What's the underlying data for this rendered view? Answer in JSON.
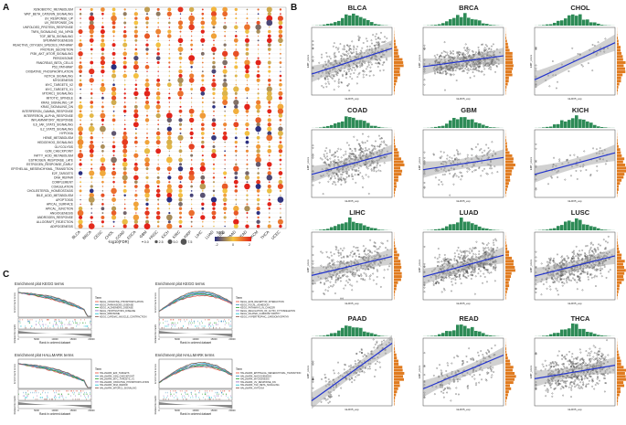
{
  "panels": {
    "a": {
      "letter": "A",
      "rows": [
        "XENOBIOTIC_METABOLISM",
        "WNT_BETA_CATENIN_SIGNALING",
        "UV_RESPONSE_UP",
        "UV_RESPONSE_DN",
        "UNFOLDED_PROTEIN_RESPONSE",
        "TNFA_SIGNALING_VIA_NFKB",
        "TGF_BETA_SIGNALING",
        "SPERMATOGENESIS",
        "REACTIVE_OXYGEN_SPECIES_PATHWAY",
        "PROTEIN_SECRETION",
        "PI3K_AKT_MTOR_SIGNALING",
        "PEROXISOME",
        "PANCREAS_BETA_CELLS",
        "P53_PATHWAY",
        "OXIDATIVE_PHOSPHORYLATION",
        "NOTCH_SIGNALING",
        "MYOGENESIS",
        "MYC_TARGETS_V2",
        "MYC_TARGETS_V1",
        "MTORC1_SIGNALING",
        "MITOTIC_SPINDLE",
        "KRAS_SIGNALING_UP",
        "KRAS_SIGNALING_DN",
        "INTERFERON_GAMMA_RESPONSE",
        "INTERFERON_ALPHA_RESPONSE",
        "INFLAMMATORY_RESPONSE",
        "IL6_JAK_STAT3_SIGNALING",
        "IL2_STAT5_SIGNALING",
        "HYPOXIA",
        "HEME_METABOLISM",
        "HEDGEHOG_SIGNALING",
        "GLYCOLYSIS",
        "G2M_CHECKPOINT",
        "FATTY_ACID_METABOLISM",
        "ESTROGEN_RESPONSE_LATE",
        "ESTROGEN_RESPONSE_EARLY",
        "EPITHELIAL_MESENCHYMAL_TRANSITION",
        "E2F_TARGETS",
        "DNA_REPAIR",
        "COMPLEMENT",
        "COAGULATION",
        "CHOLESTEROL_HOMEOSTASIS",
        "BILE_ACID_METABOLISM",
        "APOPTOSIS",
        "APICAL_SURFACE",
        "APICAL_JUNCTION",
        "ANGIOGENESIS",
        "ANDROGEN_RESPONSE",
        "ALLOGRAFT_REJECTION",
        "ADIPOGENESIS"
      ],
      "columns": [
        "BLCA",
        "BRCA",
        "CESC",
        "CHOL",
        "COAD",
        "ESCA",
        "GBM",
        "HNSC",
        "KICH",
        "KIRC",
        "KIRP",
        "LIHC",
        "LUAD",
        "LUSC",
        "PAAD",
        "READ",
        "SKCM",
        "THCA",
        "UCEC"
      ],
      "size_legend_title": "-log10(FDR)",
      "size_legend_values": [
        "0.0",
        "2.5",
        "5.0",
        "7.5"
      ],
      "color_legend_title": "NES",
      "color_legend_ticks": [
        "-2",
        "0",
        "2"
      ],
      "colors": {
        "low": "#2b2f80",
        "mid": "#f4c542",
        "high": "#e2231a"
      }
    },
    "b": {
      "letter": "B",
      "plots": [
        {
          "title": "BLCA",
          "slope": 0.38,
          "points": 380,
          "spread": 0.9
        },
        {
          "title": "BRCA",
          "slope": 0.16,
          "points": 900,
          "spread": 0.55
        },
        {
          "title": "CHOL",
          "slope": 0.55,
          "points": 40,
          "spread": 0.8
        },
        {
          "title": "COAD",
          "slope": 0.32,
          "points": 400,
          "spread": 0.9
        },
        {
          "title": "GBM",
          "slope": 0.18,
          "points": 150,
          "spread": 0.8
        },
        {
          "title": "KICH",
          "slope": 0.32,
          "points": 60,
          "spread": 0.7
        },
        {
          "title": "LIHC",
          "slope": 0.28,
          "points": 350,
          "spread": 0.9
        },
        {
          "title": "LUAD",
          "slope": 0.32,
          "points": 500,
          "spread": 0.75
        },
        {
          "title": "LUSC",
          "slope": 0.3,
          "points": 480,
          "spread": 0.75
        },
        {
          "title": "PAAD",
          "slope": 0.85,
          "points": 170,
          "spread": 0.7
        },
        {
          "title": "READ",
          "slope": 0.5,
          "points": 160,
          "spread": 0.9
        },
        {
          "title": "THCA",
          "slope": 0.2,
          "points": 480,
          "spread": 0.8
        }
      ],
      "x_axis_label": "GLRX5_exp",
      "y_axis_label": "EMT_score"
    },
    "c": {
      "letter": "C",
      "plots": [
        {
          "title": "Enrichment plot KEGG terms",
          "legend_title": "Term",
          "curve": "down",
          "terms": [
            "KEGG_OXIDATIVE_PHOSPHORYLATION",
            "KEGG_PARKINSONS_DISEASE",
            "KEGG_ALZHEIMERS_DISEASE",
            "KEGG_HUNTINGTONS_DISEASE",
            "KEGG_RIBOSOME",
            "KEGG_CARDIAC_MUSCLE_CONTRACTION"
          ]
        },
        {
          "title": "Enrichment plot KEGG terms",
          "legend_title": "Term",
          "curve": "up",
          "terms": [
            "KEGG_ECM_RECEPTOR_INTERACTION",
            "KEGG_FOCAL_ADHESION",
            "KEGG_PATHWAYS_IN_CANCER",
            "KEGG_REGULATION_OF_ACTIN_CYTOSKELETON",
            "KEGG_DILATED_CARDIOMYOPATHY",
            "KEGG_HYPERTROPHIC_CARDIOMYOPATHY"
          ]
        },
        {
          "title": "Enrichment plot HALLMARK terms",
          "legend_title": "Term",
          "curve": "down",
          "terms": [
            "HALLMARK_E2F_TARGETS",
            "HALLMARK_G2M_CHECKPOINT",
            "HALLMARK_MYC_TARGETS_V1",
            "HALLMARK_OXIDATIVE_PHOSPHORYLATION",
            "HALLMARK_DNA_REPAIR",
            "HALLMARK_MTORC1_SIGNALING"
          ]
        },
        {
          "title": "Enrichment plot HALLMARK terms",
          "legend_title": "Term",
          "curve": "up",
          "terms": [
            "HALLMARK_EPITHELIAL_MESENCHYMAL_TRANSITION",
            "HALLMARK_ANGIOGENESIS",
            "HALLMARK_MYOGENESIS",
            "HALLMARK_UV_RESPONSE_DN",
            "HALLMARK_TGF_BETA_SIGNALING",
            "HALLMARK_HYPOXIA"
          ]
        }
      ],
      "y_axis_label": "Enrichment score",
      "y_axis_label_rank": "Ranked list metric",
      "x_axis_label": "Rank in ordered dataset",
      "tick_labels": [
        "0",
        "5000",
        "10000",
        "15000",
        "20000"
      ],
      "colors": [
        "#e24a33",
        "#348abd",
        "#2ca02c",
        "#9467bd",
        "#17becf",
        "#8c564b"
      ]
    }
  }
}
